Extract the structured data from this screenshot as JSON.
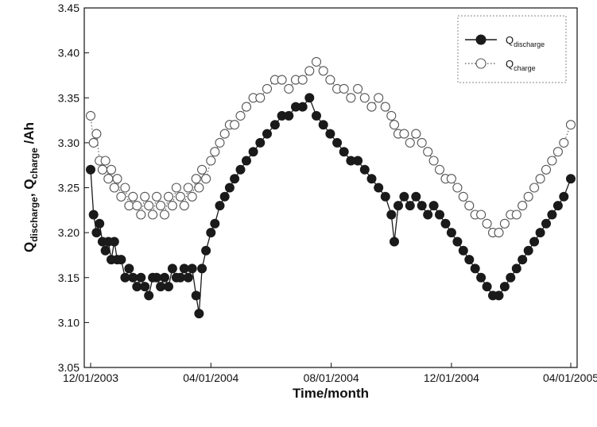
{
  "chart_data": {
    "type": "line",
    "title": "",
    "xlabel": "Time/month",
    "ylabel": {
      "parts": [
        {
          "text": "Q",
          "sub": "discharge"
        },
        {
          "text": ", Q",
          "sub": "charge"
        },
        {
          "text": " /Ah",
          "sub": ""
        }
      ]
    },
    "x_ticks": [
      "12/01/2003",
      "04/01/2004",
      "08/01/2004",
      "12/01/2004",
      "04/01/2005"
    ],
    "ylim": [
      3.05,
      3.45
    ],
    "y_ticks": [
      "3.05",
      "3.10",
      "3.15",
      "3.20",
      "3.25",
      "3.30",
      "3.35",
      "3.40",
      "3.45"
    ],
    "grid": false,
    "legend_position": "top-right",
    "series": [
      {
        "name": {
          "main": "Q",
          "sub": "discharge"
        },
        "marker": "filled-circle",
        "line_style": "solid",
        "color": "#1a1a1a",
        "points": [
          [
            "2003-12-01",
            3.27
          ],
          [
            "2003-12-04",
            3.22
          ],
          [
            "2003-12-07",
            3.2
          ],
          [
            "2003-12-10",
            3.21
          ],
          [
            "2003-12-13",
            3.19
          ],
          [
            "2003-12-16",
            3.18
          ],
          [
            "2003-12-19",
            3.19
          ],
          [
            "2003-12-22",
            3.17
          ],
          [
            "2003-12-25",
            3.19
          ],
          [
            "2003-12-28",
            3.17
          ],
          [
            "2004-01-01",
            3.17
          ],
          [
            "2004-01-05",
            3.15
          ],
          [
            "2004-01-09",
            3.16
          ],
          [
            "2004-01-13",
            3.15
          ],
          [
            "2004-01-17",
            3.14
          ],
          [
            "2004-01-21",
            3.15
          ],
          [
            "2004-01-25",
            3.14
          ],
          [
            "2004-01-29",
            3.13
          ],
          [
            "2004-02-02",
            3.15
          ],
          [
            "2004-02-06",
            3.15
          ],
          [
            "2004-02-10",
            3.14
          ],
          [
            "2004-02-14",
            3.15
          ],
          [
            "2004-02-18",
            3.14
          ],
          [
            "2004-02-22",
            3.16
          ],
          [
            "2004-02-26",
            3.15
          ],
          [
            "2004-03-01",
            3.15
          ],
          [
            "2004-03-05",
            3.16
          ],
          [
            "2004-03-09",
            3.15
          ],
          [
            "2004-03-13",
            3.16
          ],
          [
            "2004-03-17",
            3.13
          ],
          [
            "2004-03-20",
            3.11
          ],
          [
            "2004-03-23",
            3.16
          ],
          [
            "2004-03-27",
            3.18
          ],
          [
            "2004-04-01",
            3.2
          ],
          [
            "2004-04-05",
            3.21
          ],
          [
            "2004-04-10",
            3.23
          ],
          [
            "2004-04-15",
            3.24
          ],
          [
            "2004-04-20",
            3.25
          ],
          [
            "2004-04-25",
            3.26
          ],
          [
            "2004-05-01",
            3.27
          ],
          [
            "2004-05-07",
            3.28
          ],
          [
            "2004-05-14",
            3.29
          ],
          [
            "2004-05-21",
            3.3
          ],
          [
            "2004-05-28",
            3.31
          ],
          [
            "2004-06-05",
            3.32
          ],
          [
            "2004-06-12",
            3.33
          ],
          [
            "2004-06-19",
            3.33
          ],
          [
            "2004-06-26",
            3.34
          ],
          [
            "2004-07-03",
            3.34
          ],
          [
            "2004-07-10",
            3.35
          ],
          [
            "2004-07-17",
            3.33
          ],
          [
            "2004-07-24",
            3.32
          ],
          [
            "2004-07-31",
            3.31
          ],
          [
            "2004-08-07",
            3.3
          ],
          [
            "2004-08-14",
            3.29
          ],
          [
            "2004-08-21",
            3.28
          ],
          [
            "2004-08-28",
            3.28
          ],
          [
            "2004-09-04",
            3.27
          ],
          [
            "2004-09-11",
            3.26
          ],
          [
            "2004-09-18",
            3.25
          ],
          [
            "2004-09-25",
            3.24
          ],
          [
            "2004-10-01",
            3.22
          ],
          [
            "2004-10-04",
            3.19
          ],
          [
            "2004-10-08",
            3.23
          ],
          [
            "2004-10-14",
            3.24
          ],
          [
            "2004-10-20",
            3.23
          ],
          [
            "2004-10-26",
            3.24
          ],
          [
            "2004-11-01",
            3.23
          ],
          [
            "2004-11-07",
            3.22
          ],
          [
            "2004-11-13",
            3.23
          ],
          [
            "2004-11-19",
            3.22
          ],
          [
            "2004-11-25",
            3.21
          ],
          [
            "2004-12-01",
            3.2
          ],
          [
            "2004-12-07",
            3.19
          ],
          [
            "2004-12-13",
            3.18
          ],
          [
            "2004-12-19",
            3.17
          ],
          [
            "2004-12-25",
            3.16
          ],
          [
            "2004-12-31",
            3.15
          ],
          [
            "2005-01-06",
            3.14
          ],
          [
            "2005-01-12",
            3.13
          ],
          [
            "2005-01-18",
            3.13
          ],
          [
            "2005-01-24",
            3.14
          ],
          [
            "2005-01-30",
            3.15
          ],
          [
            "2005-02-05",
            3.16
          ],
          [
            "2005-02-11",
            3.17
          ],
          [
            "2005-02-17",
            3.18
          ],
          [
            "2005-02-23",
            3.19
          ],
          [
            "2005-03-01",
            3.2
          ],
          [
            "2005-03-07",
            3.21
          ],
          [
            "2005-03-13",
            3.22
          ],
          [
            "2005-03-19",
            3.23
          ],
          [
            "2005-03-25",
            3.24
          ],
          [
            "2005-04-01",
            3.26
          ]
        ]
      },
      {
        "name": {
          "main": "Q",
          "sub": "charge"
        },
        "marker": "open-circle",
        "line_style": "dotted",
        "color": "#555555",
        "points": [
          [
            "2003-12-01",
            3.33
          ],
          [
            "2003-12-04",
            3.3
          ],
          [
            "2003-12-07",
            3.31
          ],
          [
            "2003-12-10",
            3.28
          ],
          [
            "2003-12-13",
            3.27
          ],
          [
            "2003-12-16",
            3.28
          ],
          [
            "2003-12-19",
            3.26
          ],
          [
            "2003-12-22",
            3.27
          ],
          [
            "2003-12-25",
            3.25
          ],
          [
            "2003-12-28",
            3.26
          ],
          [
            "2004-01-01",
            3.24
          ],
          [
            "2004-01-05",
            3.25
          ],
          [
            "2004-01-09",
            3.23
          ],
          [
            "2004-01-13",
            3.24
          ],
          [
            "2004-01-17",
            3.23
          ],
          [
            "2004-01-21",
            3.22
          ],
          [
            "2004-01-25",
            3.24
          ],
          [
            "2004-01-29",
            3.23
          ],
          [
            "2004-02-02",
            3.22
          ],
          [
            "2004-02-06",
            3.24
          ],
          [
            "2004-02-10",
            3.23
          ],
          [
            "2004-02-14",
            3.22
          ],
          [
            "2004-02-18",
            3.24
          ],
          [
            "2004-02-22",
            3.23
          ],
          [
            "2004-02-26",
            3.25
          ],
          [
            "2004-03-01",
            3.24
          ],
          [
            "2004-03-05",
            3.23
          ],
          [
            "2004-03-09",
            3.25
          ],
          [
            "2004-03-13",
            3.24
          ],
          [
            "2004-03-17",
            3.26
          ],
          [
            "2004-03-20",
            3.25
          ],
          [
            "2004-03-23",
            3.27
          ],
          [
            "2004-03-27",
            3.26
          ],
          [
            "2004-04-01",
            3.28
          ],
          [
            "2004-04-05",
            3.29
          ],
          [
            "2004-04-10",
            3.3
          ],
          [
            "2004-04-15",
            3.31
          ],
          [
            "2004-04-20",
            3.32
          ],
          [
            "2004-04-25",
            3.32
          ],
          [
            "2004-05-01",
            3.33
          ],
          [
            "2004-05-07",
            3.34
          ],
          [
            "2004-05-14",
            3.35
          ],
          [
            "2004-05-21",
            3.35
          ],
          [
            "2004-05-28",
            3.36
          ],
          [
            "2004-06-05",
            3.37
          ],
          [
            "2004-06-12",
            3.37
          ],
          [
            "2004-06-19",
            3.36
          ],
          [
            "2004-06-26",
            3.37
          ],
          [
            "2004-07-03",
            3.37
          ],
          [
            "2004-07-10",
            3.38
          ],
          [
            "2004-07-17",
            3.39
          ],
          [
            "2004-07-24",
            3.38
          ],
          [
            "2004-07-31",
            3.37
          ],
          [
            "2004-08-07",
            3.36
          ],
          [
            "2004-08-14",
            3.36
          ],
          [
            "2004-08-21",
            3.35
          ],
          [
            "2004-08-28",
            3.36
          ],
          [
            "2004-09-04",
            3.35
          ],
          [
            "2004-09-11",
            3.34
          ],
          [
            "2004-09-18",
            3.35
          ],
          [
            "2004-09-25",
            3.34
          ],
          [
            "2004-10-01",
            3.33
          ],
          [
            "2004-10-04",
            3.32
          ],
          [
            "2004-10-08",
            3.31
          ],
          [
            "2004-10-14",
            3.31
          ],
          [
            "2004-10-20",
            3.3
          ],
          [
            "2004-10-26",
            3.31
          ],
          [
            "2004-11-01",
            3.3
          ],
          [
            "2004-11-07",
            3.29
          ],
          [
            "2004-11-13",
            3.28
          ],
          [
            "2004-11-19",
            3.27
          ],
          [
            "2004-11-25",
            3.26
          ],
          [
            "2004-12-01",
            3.26
          ],
          [
            "2004-12-07",
            3.25
          ],
          [
            "2004-12-13",
            3.24
          ],
          [
            "2004-12-19",
            3.23
          ],
          [
            "2004-12-25",
            3.22
          ],
          [
            "2004-12-31",
            3.22
          ],
          [
            "2005-01-06",
            3.21
          ],
          [
            "2005-01-12",
            3.2
          ],
          [
            "2005-01-18",
            3.2
          ],
          [
            "2005-01-24",
            3.21
          ],
          [
            "2005-01-30",
            3.22
          ],
          [
            "2005-02-05",
            3.22
          ],
          [
            "2005-02-11",
            3.23
          ],
          [
            "2005-02-17",
            3.24
          ],
          [
            "2005-02-23",
            3.25
          ],
          [
            "2005-03-01",
            3.26
          ],
          [
            "2005-03-07",
            3.27
          ],
          [
            "2005-03-13",
            3.28
          ],
          [
            "2005-03-19",
            3.29
          ],
          [
            "2005-03-25",
            3.3
          ],
          [
            "2005-04-01",
            3.32
          ]
        ]
      }
    ]
  }
}
